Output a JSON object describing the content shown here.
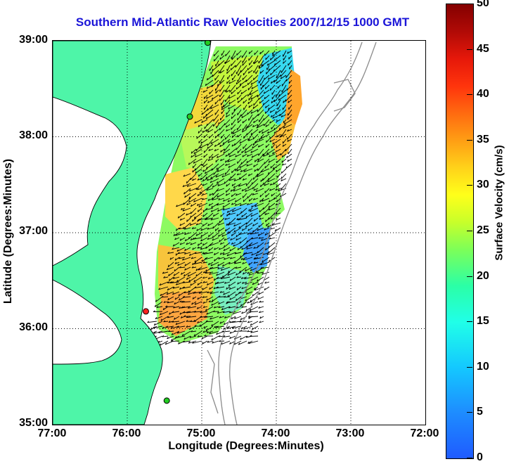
{
  "title": "Southern Mid-Atlantic Raw Velocities 2007/12/15 1000 GMT",
  "x_axis": {
    "label": "Longitude (Degrees:Minutes)",
    "ticks": [
      "77:00",
      "76:00",
      "75:00",
      "74:00",
      "73:00",
      "72:00"
    ]
  },
  "y_axis": {
    "label": "Latitude (Degrees:Minutes)",
    "ticks": [
      "39:00",
      "38:00",
      "37:00",
      "36:00",
      "35:00"
    ]
  },
  "colorbar": {
    "label": "Surface Velocity (cm/s)",
    "ticks": [
      "50",
      "45",
      "40",
      "35",
      "30",
      "25",
      "20",
      "15",
      "10",
      "5",
      "0"
    ],
    "range": [
      0,
      50
    ]
  },
  "colors": {
    "title": "#1a14d8",
    "land": "#4ef5a8",
    "water": "#ffffff",
    "bathymetry": "#8c8c8c",
    "station_green": "#22cc22",
    "station_red": "#ff2020"
  },
  "map": {
    "lon_range": [
      -77,
      -72
    ],
    "lat_range": [
      35,
      39
    ],
    "grid": true,
    "stations": [
      {
        "lon": -74.92,
        "lat": 38.98,
        "color": "green"
      },
      {
        "lon": -75.16,
        "lat": 38.21,
        "color": "green"
      },
      {
        "lon": -75.75,
        "lat": 36.18,
        "color": "red"
      },
      {
        "lon": -75.47,
        "lat": 35.25,
        "color": "green"
      }
    ]
  }
}
